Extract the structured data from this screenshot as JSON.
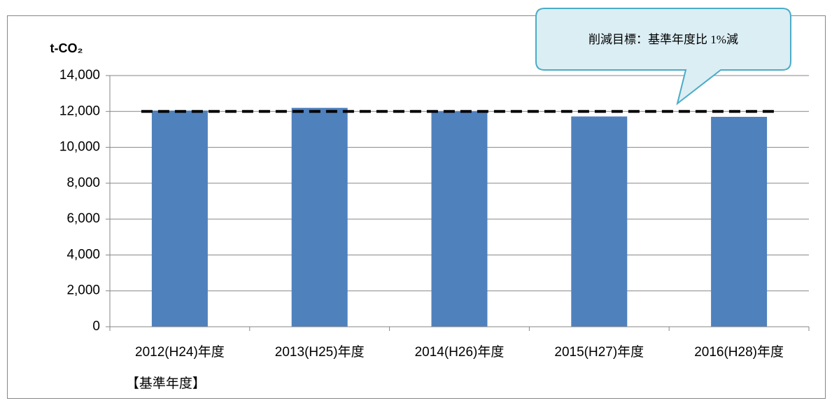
{
  "chart_data": {
    "type": "bar",
    "y_axis_label": "t-CO₂",
    "categories": [
      [
        "2012(H24)年度",
        "【基準年度】"
      ],
      [
        "2013(H25)年度"
      ],
      [
        "2014(H26)年度"
      ],
      [
        "2015(H27)年度"
      ],
      [
        "2016(H28)年度"
      ]
    ],
    "values": [
      12050,
      12200,
      12020,
      11720,
      11700
    ],
    "color": "#4f81bd",
    "ylim": [
      0,
      14000
    ],
    "yticks": [
      {
        "value": 0,
        "label": "0"
      },
      {
        "value": 2000,
        "label": "2,000"
      },
      {
        "value": 4000,
        "label": "4,000"
      },
      {
        "value": 6000,
        "label": "6,000"
      },
      {
        "value": 8000,
        "label": "8,000"
      },
      {
        "value": 10000,
        "label": "10,000"
      },
      {
        "value": 12000,
        "label": "12,000"
      },
      {
        "value": 14000,
        "label": "14,000"
      }
    ],
    "grid": true,
    "target_line": {
      "value": 12000,
      "label": "削減目標：基準年度比 1%減"
    }
  }
}
